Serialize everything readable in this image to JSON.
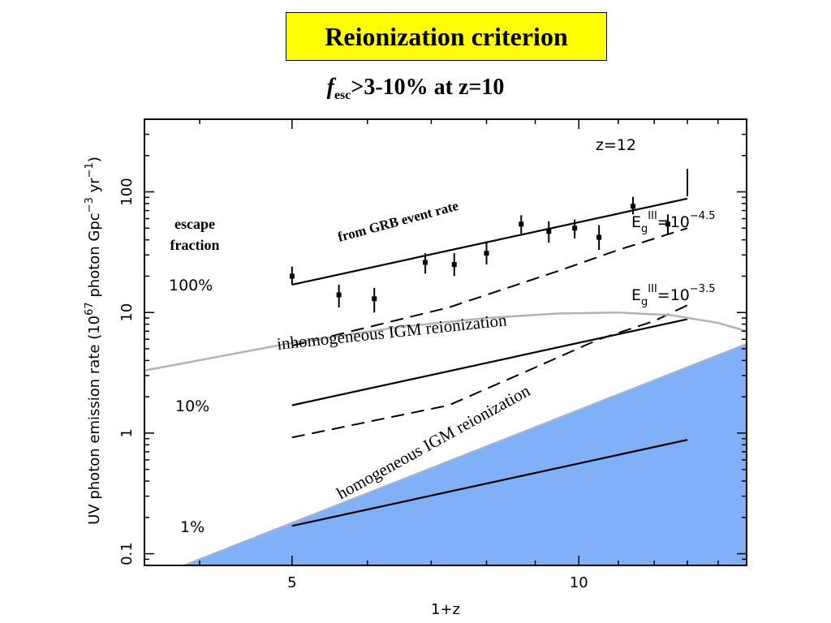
{
  "slide": {
    "title": "Reionization criterion",
    "subtitle_f": "f",
    "subtitle_sub": "esc",
    "subtitle_rest": ">3-10% at z=10"
  },
  "chart_data": {
    "type": "line",
    "xlabel": "1+z",
    "ylabel": "UV photon emission rate (10^67 photon Gpc^-3 yr^-1)",
    "ylabel_parts": {
      "base": "UV photon emission rate (10",
      "exp1": "67",
      "mid": " photon Gpc",
      "exp2": "−3",
      "mid2": " yr",
      "exp3": "−1",
      "end": ")"
    },
    "xscale": "log",
    "yscale": "log",
    "xlim": [
      3.5,
      15
    ],
    "ylim": [
      0.08,
      400
    ],
    "x_ticks": [
      5,
      10
    ],
    "x_tick_labels": [
      "5",
      "10"
    ],
    "y_ticks": [
      0.1,
      1,
      10,
      100
    ],
    "y_tick_labels": [
      "0.1",
      "1",
      "10",
      "100"
    ],
    "series": [
      {
        "key": "grb_100",
        "style": "solid",
        "x": [
          5,
          13
        ],
        "y": [
          17,
          88
        ]
      },
      {
        "key": "grb_10",
        "style": "solid",
        "x": [
          5,
          13
        ],
        "y": [
          1.7,
          8.8
        ]
      },
      {
        "key": "grb_1",
        "style": "solid",
        "x": [
          5,
          13
        ],
        "y": [
          0.17,
          0.88
        ]
      },
      {
        "key": "dashed_upper",
        "style": "dashed",
        "x": [
          5,
          7.3,
          9.5,
          11,
          13
        ],
        "y": [
          5.3,
          11,
          22,
          33,
          50
        ]
      },
      {
        "key": "dashed_lower",
        "style": "dashed",
        "x": [
          5,
          7.3,
          9,
          10.5,
          12,
          13
        ],
        "y": [
          0.92,
          1.7,
          3.5,
          6,
          8.5,
          11.5
        ]
      },
      {
        "key": "inhomogeneous",
        "style": "gray",
        "x": [
          3.5,
          5,
          6.5,
          8,
          9.5,
          11,
          12.5,
          14,
          15
        ],
        "y": [
          3.3,
          5.6,
          7.6,
          9,
          9.8,
          10,
          9.5,
          8.2,
          7
        ]
      }
    ],
    "homogeneous_region": {
      "x": [
        3.8,
        15
      ],
      "y": [
        0.077,
        5.5
      ]
    },
    "data_points": [
      {
        "x": 5.0,
        "y": 20,
        "err": [
          17,
          24
        ]
      },
      {
        "x": 5.6,
        "y": 14,
        "err": [
          11,
          17
        ]
      },
      {
        "x": 6.1,
        "y": 13,
        "err": [
          10,
          16
        ]
      },
      {
        "x": 6.9,
        "y": 26,
        "err": [
          21,
          31
        ]
      },
      {
        "x": 7.4,
        "y": 25,
        "err": [
          20,
          31
        ]
      },
      {
        "x": 8.0,
        "y": 31,
        "err": [
          25,
          38
        ]
      },
      {
        "x": 8.7,
        "y": 54,
        "err": [
          45,
          64
        ]
      },
      {
        "x": 9.3,
        "y": 47,
        "err": [
          38,
          57
        ]
      },
      {
        "x": 9.9,
        "y": 50,
        "err": [
          41,
          59
        ]
      },
      {
        "x": 10.5,
        "y": 42,
        "err": [
          33,
          53
        ]
      },
      {
        "x": 11.4,
        "y": 76,
        "err": [
          65,
          91
        ]
      },
      {
        "x": 12.4,
        "y": 54,
        "err": [
          44,
          65
        ]
      }
    ],
    "annotations": {
      "z12": "z=12",
      "escape_fraction_1": "escape",
      "escape_fraction_2": "fraction",
      "pct100": "100%",
      "pct10": "10%",
      "pct1": "1%",
      "grb_label": "from GRB event rate",
      "inhomogeneous_label": "inhomogeneous IGM reionization",
      "homogeneous_label": "homogeneous IGM reionization",
      "eg1_base": "E",
      "eg1_sub": "g",
      "eg1_sup": "III",
      "eg1_rest": "=10",
      "eg1_exp": "−4.5",
      "eg2_base": "E",
      "eg2_sub": "g",
      "eg2_sup": "III",
      "eg2_rest": "=10",
      "eg2_exp": "−3.5"
    },
    "colors": {
      "grb_label": "#e00000",
      "igm_label": "#1ea0d8",
      "homogeneous_fill": "#80b0f8",
      "inhomogeneous_line": "#b4b4b4"
    }
  }
}
